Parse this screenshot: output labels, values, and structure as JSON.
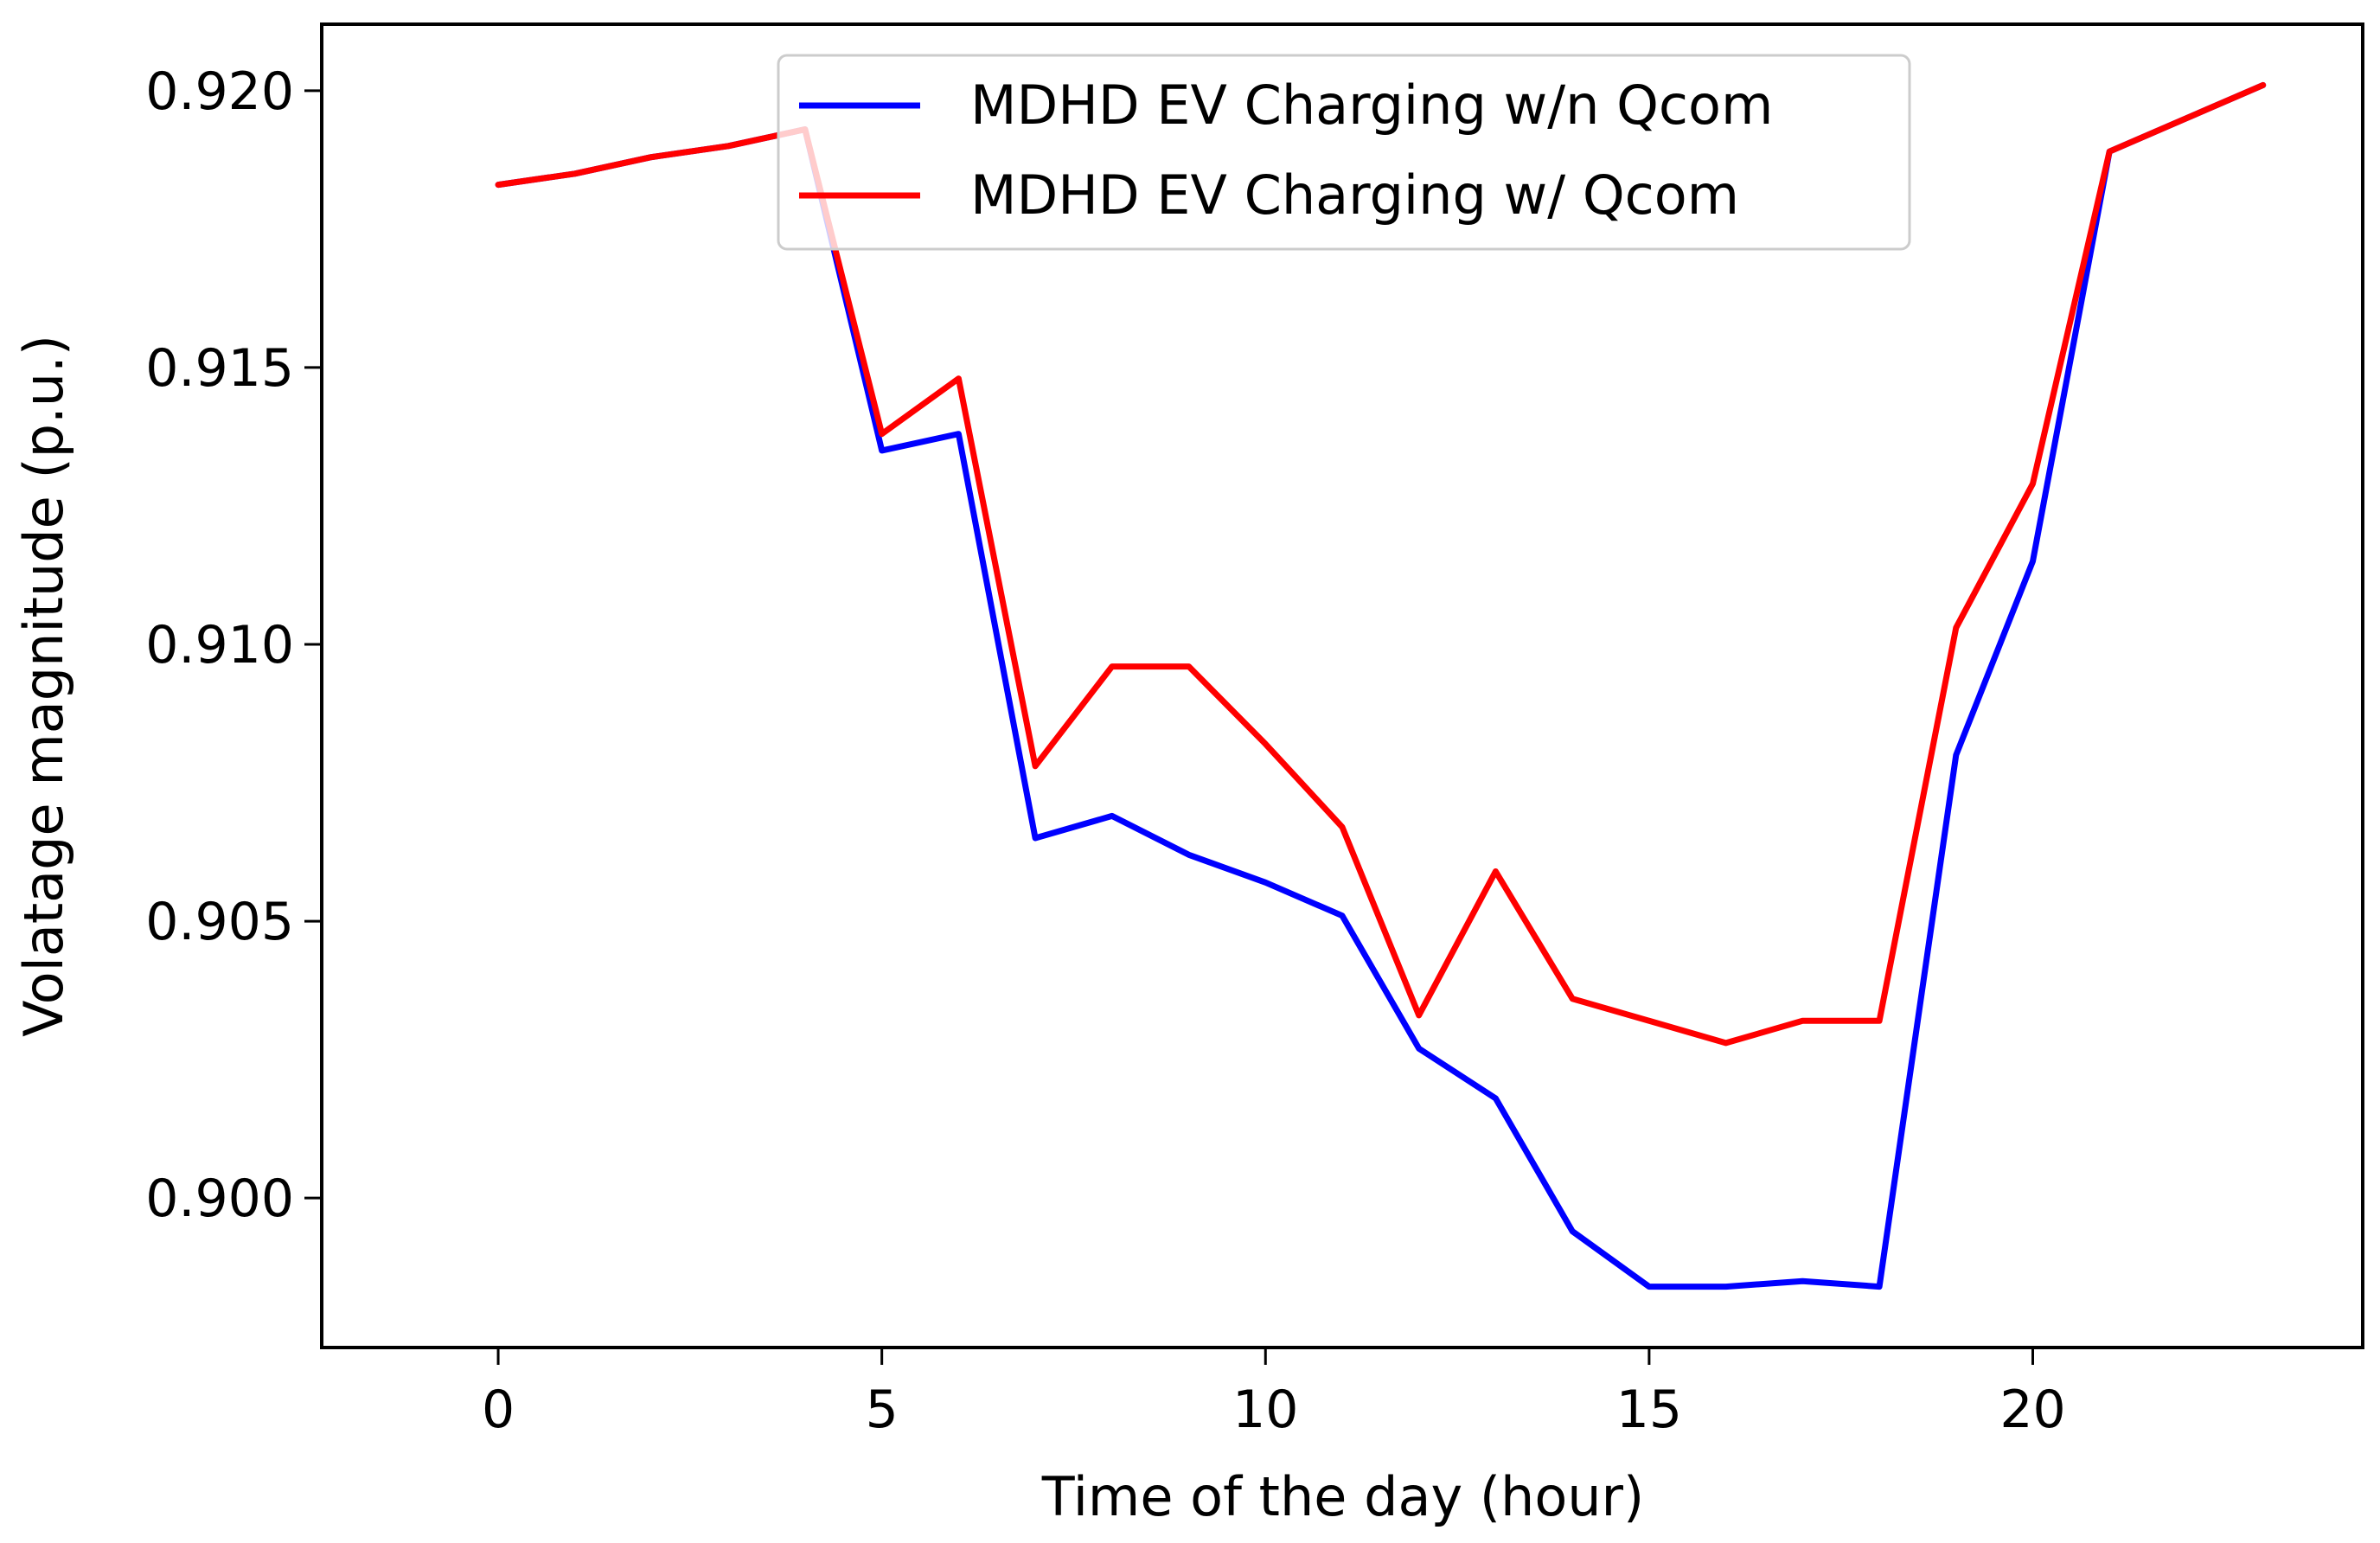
{
  "chart_data": {
    "type": "line",
    "title": "",
    "xlabel": "Time of the day (hour)",
    "ylabel": "Volatage magnitude (p.u.)",
    "xlim": [
      -2.3,
      24.3
    ],
    "ylim": [
      0.8973,
      0.9212
    ],
    "x_ticks": [
      0,
      5,
      10,
      15,
      20
    ],
    "x_tick_labels": [
      "0",
      "5",
      "10",
      "15",
      "20"
    ],
    "y_ticks": [
      0.9,
      0.905,
      0.91,
      0.915,
      0.92
    ],
    "y_tick_labels": [
      "0.900",
      "0.905",
      "0.910",
      "0.915",
      "0.920"
    ],
    "grid": false,
    "legend_position": "top-center",
    "x": [
      0,
      1,
      2,
      3,
      4,
      5,
      6,
      7,
      8,
      9,
      10,
      11,
      12,
      13,
      14,
      15,
      16,
      17,
      18,
      19,
      20,
      21,
      22,
      23
    ],
    "series": [
      {
        "name": "MDHD EV Charging w/n Qcom",
        "color": "#0000ff",
        "values": [
          0.9183,
          0.9185,
          0.9188,
          0.919,
          0.9193,
          0.9135,
          0.9138,
          0.9065,
          0.9069,
          0.9062,
          0.9057,
          0.9051,
          0.9027,
          0.9018,
          0.8994,
          0.8984,
          0.8984,
          0.8985,
          0.8984,
          0.908,
          0.9115,
          0.9189,
          0.9195,
          0.9201
        ]
      },
      {
        "name": "MDHD EV Charging w/ Qcom",
        "color": "#ff0000",
        "values": [
          0.9183,
          0.9185,
          0.9188,
          0.919,
          0.9193,
          0.9138,
          0.9148,
          0.9078,
          0.9096,
          0.9096,
          0.9082,
          0.9067,
          0.9033,
          0.9059,
          0.9036,
          0.9032,
          0.9028,
          0.9032,
          0.9032,
          0.9103,
          0.9129,
          0.9189,
          0.9195,
          0.9201
        ]
      }
    ]
  }
}
